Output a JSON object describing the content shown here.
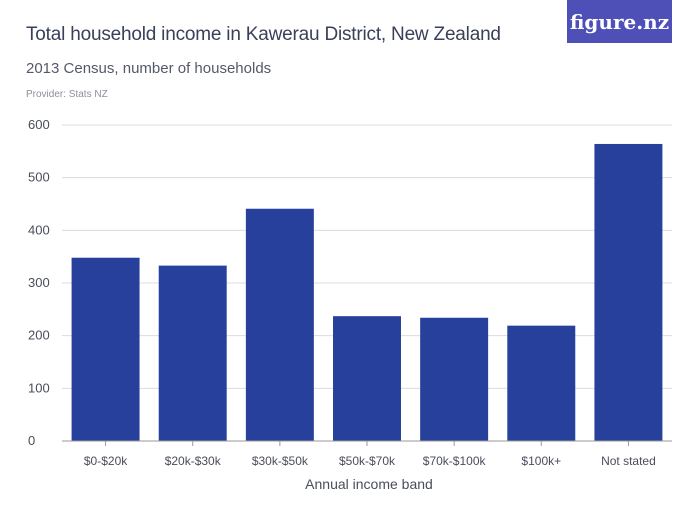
{
  "brand": {
    "logo": "figure.nz"
  },
  "header": {
    "title": "Total household income in Kawerau District, New Zealand",
    "subtitle": "2013 Census, number of households",
    "provider": "Provider: Stats NZ"
  },
  "colors": {
    "bar": "#27409b",
    "grid": "#dcdcdc",
    "brand": "#4f4fb8"
  },
  "chart_data": {
    "type": "bar",
    "title": "Total household income in Kawerau District, New Zealand",
    "subtitle": "2013 Census, number of households",
    "xlabel": "Annual income band",
    "ylabel": "",
    "categories": [
      "$0-$20k",
      "$20k-$30k",
      "$30k-$50k",
      "$50k-$70k",
      "$70k-$100k",
      "$100k+",
      "Not stated"
    ],
    "values": [
      348,
      333,
      441,
      237,
      234,
      219,
      564
    ],
    "ylim": [
      0,
      600
    ],
    "yticks": [
      0,
      100,
      200,
      300,
      400,
      500,
      600
    ],
    "grid": true,
    "legend": "none"
  }
}
